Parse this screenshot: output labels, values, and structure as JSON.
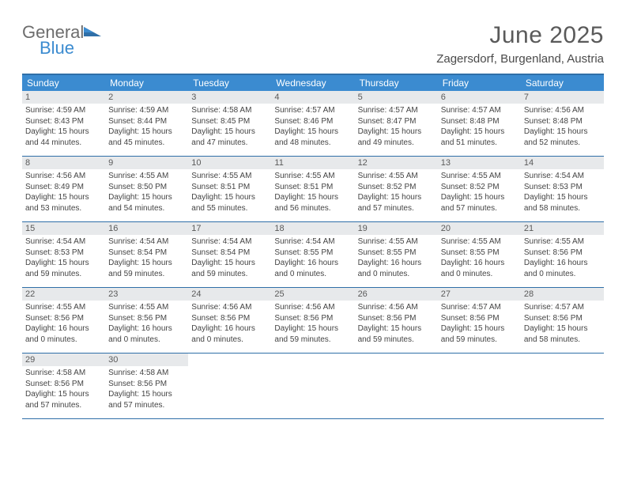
{
  "logo": {
    "word1": "General",
    "word2": "Blue",
    "word1_color": "#6d6d6d",
    "word2_color": "#3b8bd0"
  },
  "title": "June 2025",
  "location": "Zagersdorf, Burgenland, Austria",
  "colors": {
    "header_bg": "#3b8bd0",
    "header_text": "#ffffff",
    "rule": "#2f6fa8",
    "daynum_bg": "#e7e9eb",
    "daynum_text": "#5a5a5a",
    "body_text": "#444444",
    "title_text": "#5a5a5a"
  },
  "typography": {
    "title_fontsize": 30,
    "location_fontsize": 15,
    "weekday_fontsize": 12,
    "daynum_fontsize": 11,
    "cell_fontsize": 10
  },
  "weekdays": [
    "Sunday",
    "Monday",
    "Tuesday",
    "Wednesday",
    "Thursday",
    "Friday",
    "Saturday"
  ],
  "weeks": [
    [
      {
        "n": "1",
        "sr": "Sunrise: 4:59 AM",
        "ss": "Sunset: 8:43 PM",
        "d1": "Daylight: 15 hours",
        "d2": "and 44 minutes."
      },
      {
        "n": "2",
        "sr": "Sunrise: 4:59 AM",
        "ss": "Sunset: 8:44 PM",
        "d1": "Daylight: 15 hours",
        "d2": "and 45 minutes."
      },
      {
        "n": "3",
        "sr": "Sunrise: 4:58 AM",
        "ss": "Sunset: 8:45 PM",
        "d1": "Daylight: 15 hours",
        "d2": "and 47 minutes."
      },
      {
        "n": "4",
        "sr": "Sunrise: 4:57 AM",
        "ss": "Sunset: 8:46 PM",
        "d1": "Daylight: 15 hours",
        "d2": "and 48 minutes."
      },
      {
        "n": "5",
        "sr": "Sunrise: 4:57 AM",
        "ss": "Sunset: 8:47 PM",
        "d1": "Daylight: 15 hours",
        "d2": "and 49 minutes."
      },
      {
        "n": "6",
        "sr": "Sunrise: 4:57 AM",
        "ss": "Sunset: 8:48 PM",
        "d1": "Daylight: 15 hours",
        "d2": "and 51 minutes."
      },
      {
        "n": "7",
        "sr": "Sunrise: 4:56 AM",
        "ss": "Sunset: 8:48 PM",
        "d1": "Daylight: 15 hours",
        "d2": "and 52 minutes."
      }
    ],
    [
      {
        "n": "8",
        "sr": "Sunrise: 4:56 AM",
        "ss": "Sunset: 8:49 PM",
        "d1": "Daylight: 15 hours",
        "d2": "and 53 minutes."
      },
      {
        "n": "9",
        "sr": "Sunrise: 4:55 AM",
        "ss": "Sunset: 8:50 PM",
        "d1": "Daylight: 15 hours",
        "d2": "and 54 minutes."
      },
      {
        "n": "10",
        "sr": "Sunrise: 4:55 AM",
        "ss": "Sunset: 8:51 PM",
        "d1": "Daylight: 15 hours",
        "d2": "and 55 minutes."
      },
      {
        "n": "11",
        "sr": "Sunrise: 4:55 AM",
        "ss": "Sunset: 8:51 PM",
        "d1": "Daylight: 15 hours",
        "d2": "and 56 minutes."
      },
      {
        "n": "12",
        "sr": "Sunrise: 4:55 AM",
        "ss": "Sunset: 8:52 PM",
        "d1": "Daylight: 15 hours",
        "d2": "and 57 minutes."
      },
      {
        "n": "13",
        "sr": "Sunrise: 4:55 AM",
        "ss": "Sunset: 8:52 PM",
        "d1": "Daylight: 15 hours",
        "d2": "and 57 minutes."
      },
      {
        "n": "14",
        "sr": "Sunrise: 4:54 AM",
        "ss": "Sunset: 8:53 PM",
        "d1": "Daylight: 15 hours",
        "d2": "and 58 minutes."
      }
    ],
    [
      {
        "n": "15",
        "sr": "Sunrise: 4:54 AM",
        "ss": "Sunset: 8:53 PM",
        "d1": "Daylight: 15 hours",
        "d2": "and 59 minutes."
      },
      {
        "n": "16",
        "sr": "Sunrise: 4:54 AM",
        "ss": "Sunset: 8:54 PM",
        "d1": "Daylight: 15 hours",
        "d2": "and 59 minutes."
      },
      {
        "n": "17",
        "sr": "Sunrise: 4:54 AM",
        "ss": "Sunset: 8:54 PM",
        "d1": "Daylight: 15 hours",
        "d2": "and 59 minutes."
      },
      {
        "n": "18",
        "sr": "Sunrise: 4:54 AM",
        "ss": "Sunset: 8:55 PM",
        "d1": "Daylight: 16 hours",
        "d2": "and 0 minutes."
      },
      {
        "n": "19",
        "sr": "Sunrise: 4:55 AM",
        "ss": "Sunset: 8:55 PM",
        "d1": "Daylight: 16 hours",
        "d2": "and 0 minutes."
      },
      {
        "n": "20",
        "sr": "Sunrise: 4:55 AM",
        "ss": "Sunset: 8:55 PM",
        "d1": "Daylight: 16 hours",
        "d2": "and 0 minutes."
      },
      {
        "n": "21",
        "sr": "Sunrise: 4:55 AM",
        "ss": "Sunset: 8:56 PM",
        "d1": "Daylight: 16 hours",
        "d2": "and 0 minutes."
      }
    ],
    [
      {
        "n": "22",
        "sr": "Sunrise: 4:55 AM",
        "ss": "Sunset: 8:56 PM",
        "d1": "Daylight: 16 hours",
        "d2": "and 0 minutes."
      },
      {
        "n": "23",
        "sr": "Sunrise: 4:55 AM",
        "ss": "Sunset: 8:56 PM",
        "d1": "Daylight: 16 hours",
        "d2": "and 0 minutes."
      },
      {
        "n": "24",
        "sr": "Sunrise: 4:56 AM",
        "ss": "Sunset: 8:56 PM",
        "d1": "Daylight: 16 hours",
        "d2": "and 0 minutes."
      },
      {
        "n": "25",
        "sr": "Sunrise: 4:56 AM",
        "ss": "Sunset: 8:56 PM",
        "d1": "Daylight: 15 hours",
        "d2": "and 59 minutes."
      },
      {
        "n": "26",
        "sr": "Sunrise: 4:56 AM",
        "ss": "Sunset: 8:56 PM",
        "d1": "Daylight: 15 hours",
        "d2": "and 59 minutes."
      },
      {
        "n": "27",
        "sr": "Sunrise: 4:57 AM",
        "ss": "Sunset: 8:56 PM",
        "d1": "Daylight: 15 hours",
        "d2": "and 59 minutes."
      },
      {
        "n": "28",
        "sr": "Sunrise: 4:57 AM",
        "ss": "Sunset: 8:56 PM",
        "d1": "Daylight: 15 hours",
        "d2": "and 58 minutes."
      }
    ],
    [
      {
        "n": "29",
        "sr": "Sunrise: 4:58 AM",
        "ss": "Sunset: 8:56 PM",
        "d1": "Daylight: 15 hours",
        "d2": "and 57 minutes."
      },
      {
        "n": "30",
        "sr": "Sunrise: 4:58 AM",
        "ss": "Sunset: 8:56 PM",
        "d1": "Daylight: 15 hours",
        "d2": "and 57 minutes."
      },
      null,
      null,
      null,
      null,
      null
    ]
  ]
}
